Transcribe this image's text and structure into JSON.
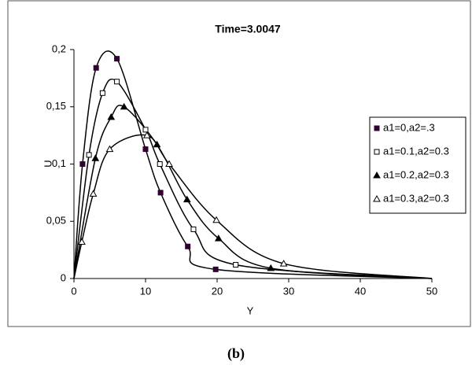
{
  "chart_data": {
    "type": "line",
    "title": "Time=3.0047",
    "x_label": "Y",
    "y_label": "U",
    "caption": "(b)",
    "xlim": [
      0,
      50
    ],
    "ylim": [
      0,
      0.2
    ],
    "xticks": [
      0,
      10,
      20,
      30,
      40,
      50
    ],
    "yticks": [
      0,
      {
        "value": 0.05,
        "label": "0,05"
      },
      {
        "value": 0.1,
        "label": "0,1"
      },
      {
        "value": 0.15,
        "label": "0,15"
      },
      {
        "value": 0.2,
        "label": "0,2"
      }
    ],
    "grid": false,
    "legend": "right",
    "line_color": "#000000",
    "series": [
      {
        "name": "a1=0,a2=.3",
        "color": "#330033",
        "marker": "filled-square",
        "x": [
          1.2,
          3.1,
          6.0,
          10.0,
          12.1,
          15.9,
          19.8
        ],
        "values": [
          0.1,
          0.184,
          0.192,
          0.113,
          0.075,
          0.028,
          0.008
        ]
      },
      {
        "name": "a1=0.1,a2=0.3",
        "color": "#000000",
        "marker": "open-square",
        "x": [
          2.1,
          4.0,
          6.0,
          10.0,
          12.0,
          16.7,
          22.6
        ],
        "values": [
          0.108,
          0.162,
          0.172,
          0.13,
          0.1,
          0.043,
          0.012
        ]
      },
      {
        "name": "a1=0.2,a2=0.3",
        "color": "#000000",
        "marker": "filled-triangle",
        "x": [
          3.0,
          5.2,
          7.0,
          11.6,
          15.8,
          20.2,
          27.5
        ],
        "values": [
          0.105,
          0.141,
          0.15,
          0.117,
          0.069,
          0.035,
          0.009
        ]
      },
      {
        "name": "a1=0.3,a2=0.3",
        "color": "#000000",
        "marker": "open-triangle",
        "x": [
          1.1,
          2.7,
          5.0,
          10.2,
          13.3,
          19.9,
          29.3
        ],
        "values": [
          0.032,
          0.074,
          0.113,
          0.125,
          0.1,
          0.051,
          0.013
        ]
      }
    ]
  }
}
